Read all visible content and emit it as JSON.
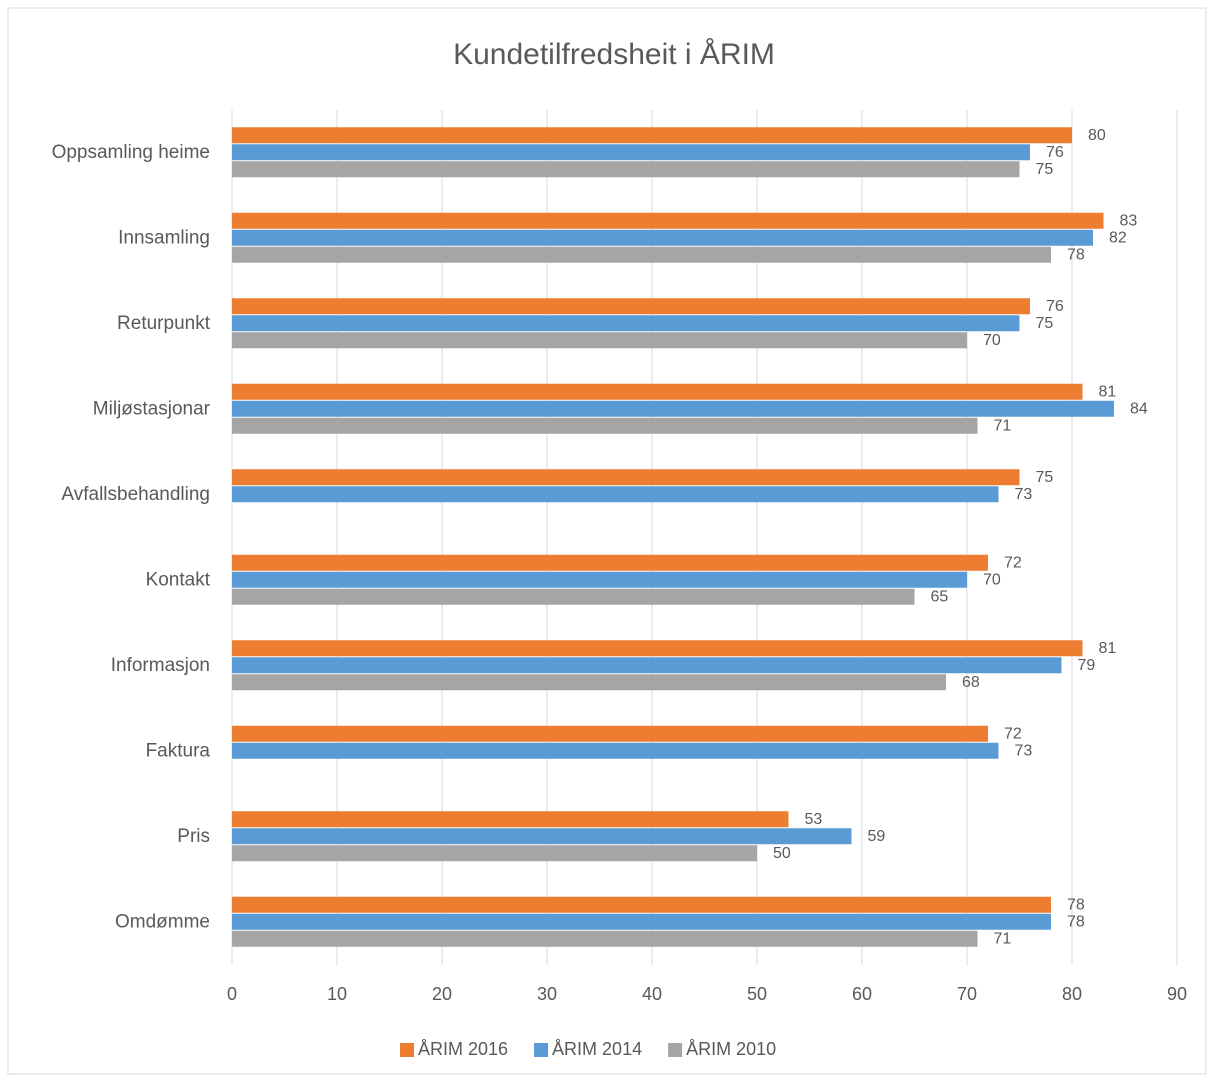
{
  "chart_data": {
    "type": "hbar",
    "title": "Kundetilfredsheit i ÅRIM",
    "categories": [
      "Oppsamling heime",
      "Innsamling",
      "Returpunkt",
      "Miljøstasjonar",
      "Avfallsbehandling",
      "Kontakt",
      "Informasjon",
      "Faktura",
      "Pris",
      "Omdømme"
    ],
    "series": [
      {
        "name": "ÅRIM 2016",
        "color": "#ed7d31",
        "values": [
          80,
          83,
          76,
          81,
          75,
          72,
          81,
          72,
          53,
          78
        ]
      },
      {
        "name": "ÅRIM 2014",
        "color": "#5b9bd5",
        "values": [
          76,
          82,
          75,
          84,
          73,
          70,
          79,
          73,
          59,
          78
        ]
      },
      {
        "name": "ÅRIM 2010",
        "color": "#a5a5a5",
        "values": [
          75,
          78,
          70,
          71,
          null,
          65,
          68,
          null,
          50,
          71
        ]
      }
    ],
    "xlim": [
      0,
      90
    ],
    "xticks": [
      0,
      10,
      20,
      30,
      40,
      50,
      60,
      70,
      80,
      90
    ],
    "grid": true,
    "legend": "bottom"
  }
}
